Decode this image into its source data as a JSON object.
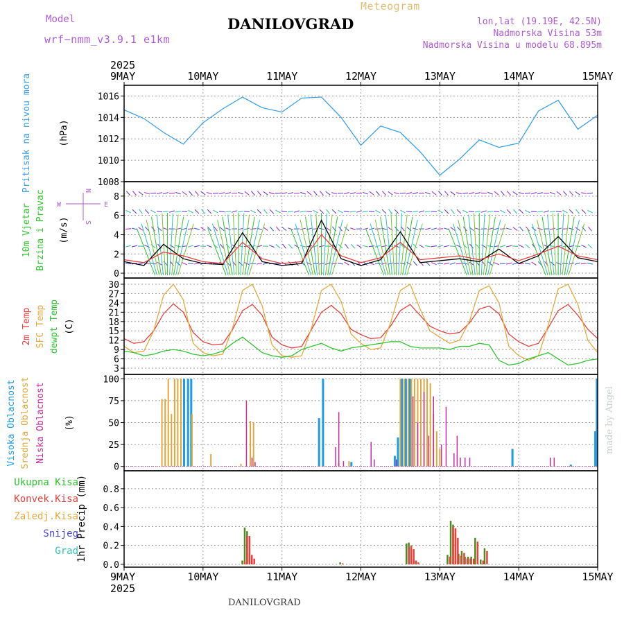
{
  "header": {
    "model_label": "Model",
    "model_name": "wrf−nmm_v3.9.1  e1km",
    "title": "DANILOVGRAD",
    "meteogram": "Meteogram",
    "lonlat": "lon,lat (19.19E, 42.5N)",
    "elevation": "Nadmorska Visina 53m",
    "model_elevation": "Nadmorska Visina u modelu 68.895m"
  },
  "footer": "DANILOVGRAD",
  "credit": "made by Angel",
  "chart_data": [
    {
      "type": "line",
      "panel": "pressure",
      "ylabel_parts": [
        "Pritisak na nivou mora",
        "(hPa)"
      ],
      "ylim": [
        1008,
        1017
      ],
      "yticks": [
        1008,
        1010,
        1012,
        1014,
        1016
      ],
      "x_days": [
        0,
        0.25,
        0.5,
        0.75,
        1,
        1.25,
        1.5,
        1.75,
        2,
        2.25,
        2.5,
        2.75,
        3,
        3.25,
        3.5,
        3.75,
        4,
        4.25,
        4.5,
        4.75,
        5,
        5.25,
        5.5,
        5.75,
        6
      ],
      "series": [
        {
          "color": "#3aa0e8",
          "values": [
            1014.7,
            1013.9,
            1012.6,
            1011.5,
            1013.5,
            1014.8,
            1015.9,
            1014.9,
            1014.5,
            1015.8,
            1015.9,
            1014.0,
            1011.4,
            1013.2,
            1012.6,
            1010.8,
            1008.6,
            1010.1,
            1011.9,
            1011.2,
            1011.6,
            1014.6,
            1015.6,
            1012.9,
            1014.2
          ]
        }
      ]
    },
    {
      "type": "line",
      "panel": "wind",
      "ylabel_parts": [
        "10m Vjetar",
        "Brzina i Pravac",
        "(m/s)"
      ],
      "compass_labels": [
        "N",
        "S",
        "W",
        "E"
      ],
      "ylim": [
        -0.5,
        9.5
      ],
      "yticks": [
        0,
        2,
        4,
        6,
        8
      ],
      "x_days": [
        0,
        0.25,
        0.5,
        0.75,
        1,
        1.25,
        1.5,
        1.75,
        2,
        2.25,
        2.5,
        2.75,
        3,
        3.25,
        3.5,
        3.75,
        4,
        4.25,
        4.5,
        4.75,
        5,
        5.25,
        5.5,
        5.75,
        6
      ],
      "series": [
        {
          "color": "#000000",
          "values": [
            1.2,
            0.8,
            3.0,
            1.5,
            1.0,
            0.9,
            4.2,
            1.2,
            0.8,
            1.0,
            5.5,
            1.5,
            0.8,
            1.4,
            4.3,
            1.1,
            1.3,
            1.5,
            1.2,
            2.5,
            1.0,
            1.8,
            3.8,
            1.6,
            1.2
          ]
        },
        {
          "color": "#e83c3c",
          "values": [
            1.4,
            1.1,
            2.2,
            1.8,
            1.2,
            1.0,
            3.2,
            1.5,
            1.0,
            1.2,
            4.0,
            1.8,
            1.1,
            1.6,
            3.2,
            1.4,
            1.6,
            1.8,
            1.4,
            2.0,
            1.3,
            2.0,
            2.8,
            1.8,
            1.4
          ]
        }
      ]
    },
    {
      "type": "line",
      "panel": "temperature",
      "ylabel_parts": [
        "2m Temp",
        "SFC Temp",
        "dewpt Temp",
        "(C)"
      ],
      "ylim": [
        1,
        32
      ],
      "yticks": [
        3,
        6,
        9,
        12,
        15,
        18,
        21,
        24,
        27,
        30
      ],
      "x_days": [
        0,
        0.125,
        0.25,
        0.375,
        0.5,
        0.625,
        0.75,
        0.875,
        1,
        1.125,
        1.25,
        1.375,
        1.5,
        1.625,
        1.75,
        1.875,
        2,
        2.125,
        2.25,
        2.375,
        2.5,
        2.625,
        2.75,
        2.875,
        3,
        3.125,
        3.25,
        3.375,
        3.5,
        3.625,
        3.75,
        3.875,
        4,
        4.125,
        4.25,
        4.375,
        4.5,
        4.625,
        4.75,
        4.875,
        5,
        5.125,
        5.25,
        5.375,
        5.5,
        5.625,
        5.75,
        5.875,
        6
      ],
      "series": [
        {
          "name": "2m Temp",
          "color": "#e8403c",
          "values": [
            12.5,
            11.0,
            11.5,
            15.0,
            20.5,
            23.7,
            21.0,
            14.5,
            11.5,
            10.5,
            10.8,
            15.5,
            21.5,
            23.5,
            20.0,
            13.0,
            10.5,
            9.5,
            10.0,
            15.5,
            21.0,
            23.2,
            20.5,
            15.5,
            13.8,
            12.5,
            12.8,
            16.5,
            21.5,
            23.5,
            20.0,
            16.5,
            15.0,
            14.0,
            14.5,
            17.5,
            22.0,
            23.0,
            20.5,
            14.0,
            11.5,
            10.0,
            11.0,
            16.0,
            21.5,
            23.5,
            20.0,
            15.5,
            12.5
          ]
        },
        {
          "name": "SFC Temp",
          "color": "#e6a93c",
          "values": [
            10.0,
            8.0,
            8.5,
            15.0,
            26.5,
            30.0,
            25.0,
            11.0,
            8.0,
            7.0,
            7.5,
            16.0,
            28.0,
            30.0,
            23.0,
            10.5,
            7.0,
            6.5,
            7.0,
            16.0,
            28.0,
            30.0,
            24.5,
            14.0,
            11.0,
            9.0,
            9.5,
            17.5,
            28.0,
            30.0,
            22.0,
            15.0,
            13.0,
            11.0,
            12.0,
            18.0,
            28.0,
            29.5,
            24.0,
            10.0,
            7.0,
            5.5,
            7.0,
            17.0,
            28.5,
            30.0,
            23.5,
            12.0,
            8.0
          ]
        },
        {
          "name": "dewpt Temp",
          "color": "#2ec42e",
          "values": [
            8.5,
            8.0,
            7.0,
            7.5,
            8.5,
            9.0,
            8.5,
            7.5,
            7.0,
            7.5,
            8.5,
            11.0,
            13.0,
            10.5,
            8.0,
            7.0,
            6.5,
            7.0,
            9.0,
            10.0,
            11.0,
            9.5,
            8.5,
            9.5,
            10.0,
            10.5,
            11.0,
            11.5,
            11.5,
            10.0,
            9.5,
            9.5,
            9.5,
            9.0,
            10.0,
            10.0,
            11.0,
            10.5,
            5.5,
            4.0,
            4.5,
            6.0,
            7.0,
            8.0,
            6.0,
            4.0,
            4.5,
            5.5,
            6.0
          ]
        }
      ]
    },
    {
      "type": "bar",
      "panel": "cloud",
      "ylabel_parts": [
        "Visoka Oblacnost",
        "Srednja Oblacnost",
        "Niska Oblacnost",
        "(%)"
      ],
      "ylim": [
        -5,
        105
      ],
      "yticks": [
        0,
        25,
        50,
        75,
        100
      ],
      "series": [
        {
          "name": "Visoka Oblacnost",
          "color": "#1e9be6",
          "points": [
            [
              0.76,
              100
            ],
            [
              0.81,
              100
            ],
            [
              0.85,
              100
            ],
            [
              2.47,
              55
            ],
            [
              2.52,
              100
            ],
            [
              2.88,
              5
            ],
            [
              3.43,
              12
            ],
            [
              3.47,
              33
            ],
            [
              3.52,
              100
            ],
            [
              3.57,
              100
            ],
            [
              3.62,
              100
            ],
            [
              4.92,
              20
            ],
            [
              5.66,
              2
            ],
            [
              5.97,
              40
            ],
            [
              5.99,
              100
            ]
          ]
        },
        {
          "name": "Srednja Oblacnost",
          "color": "#e0a83c",
          "points": [
            [
              0.48,
              77
            ],
            [
              0.52,
              77
            ],
            [
              0.56,
              100
            ],
            [
              0.6,
              60
            ],
            [
              0.64,
              100
            ],
            [
              0.68,
              100
            ],
            [
              0.72,
              100
            ],
            [
              0.86,
              60
            ],
            [
              1.1,
              14
            ],
            [
              1.48,
              3
            ],
            [
              1.6,
              52
            ],
            [
              1.64,
              50
            ],
            [
              2.72,
              4
            ],
            [
              2.85,
              6
            ],
            [
              3.5,
              100
            ],
            [
              3.55,
              100
            ],
            [
              3.6,
              100
            ],
            [
              3.64,
              100
            ],
            [
              3.68,
              100
            ],
            [
              3.72,
              100
            ],
            [
              3.76,
              100
            ],
            [
              3.8,
              100
            ],
            [
              3.84,
              100
            ],
            [
              3.88,
              95
            ],
            [
              3.92,
              60
            ],
            [
              3.96,
              40
            ],
            [
              4.0,
              20
            ]
          ]
        },
        {
          "name": "Niska Oblacnost",
          "color": "#c42e9e",
          "points": [
            [
              1.55,
              75
            ],
            [
              1.62,
              10
            ],
            [
              1.66,
              5
            ],
            [
              2.68,
              22
            ],
            [
              2.72,
              62
            ],
            [
              2.78,
              6
            ],
            [
              3.13,
              28
            ],
            [
              3.17,
              8
            ],
            [
              3.45,
              8
            ],
            [
              3.66,
              80
            ],
            [
              3.72,
              50
            ],
            [
              3.8,
              85
            ],
            [
              3.86,
              35
            ],
            [
              3.92,
              80
            ],
            [
              4.02,
              25
            ],
            [
              4.08,
              68
            ],
            [
              4.18,
              15
            ],
            [
              4.22,
              35
            ],
            [
              4.26,
              10
            ],
            [
              4.32,
              10
            ],
            [
              4.38,
              10
            ],
            [
              5.4,
              10
            ],
            [
              5.45,
              10
            ]
          ]
        }
      ]
    },
    {
      "type": "bar",
      "panel": "precip",
      "ylabel_parts": [
        "1hr Precip (mm)"
      ],
      "legend": [
        "Ukupna Kisa",
        "Konvek.Kisa",
        "Zaledj.Kisa",
        "Snijeg",
        "Grad"
      ],
      "legend_colors": [
        "#2ec42e",
        "#e8403c",
        "#e6a93c",
        "#4a4ae0",
        "#2ec4b4"
      ],
      "ylim": [
        -0.03,
        0.99
      ],
      "yticks": [
        0.0,
        0.2,
        0.4,
        0.6,
        0.8
      ],
      "x_days": [
        1.5,
        1.53,
        1.56,
        1.59,
        1.62,
        2.74,
        3.58,
        3.61,
        3.64,
        3.67,
        3.7,
        4.1,
        4.14,
        4.17,
        4.2,
        4.24,
        4.28,
        4.32,
        4.36,
        4.4,
        4.45,
        4.52,
        4.57
      ],
      "series": [
        {
          "name": "Ukupna Kisa",
          "color": "#4d8a1e",
          "values": [
            0.04,
            0.39,
            0.35,
            0.12,
            0.08,
            0.02,
            0.22,
            0.23,
            0.19,
            0.05,
            0.03,
            0.1,
            0.46,
            0.42,
            0.33,
            0.11,
            0.14,
            0.08,
            0.08,
            0.08,
            0.28,
            0.05,
            0.17
          ]
        },
        {
          "name": "Konvek.Kisa",
          "color": "#e8403c",
          "values": [
            0.03,
            0.3,
            0.3,
            0.1,
            0.06,
            0.01,
            0.18,
            0.2,
            0.16,
            0.04,
            0.02,
            0.08,
            0.4,
            0.38,
            0.28,
            0.09,
            0.12,
            0.06,
            0.06,
            0.06,
            0.24,
            0.04,
            0.14
          ]
        }
      ]
    }
  ],
  "x_axis": {
    "year": "2025",
    "tick_labels": [
      "9MAY",
      "10MAY",
      "11MAY",
      "12MAY",
      "13MAY",
      "14MAY",
      "15MAY"
    ],
    "range": [
      0,
      6
    ]
  }
}
